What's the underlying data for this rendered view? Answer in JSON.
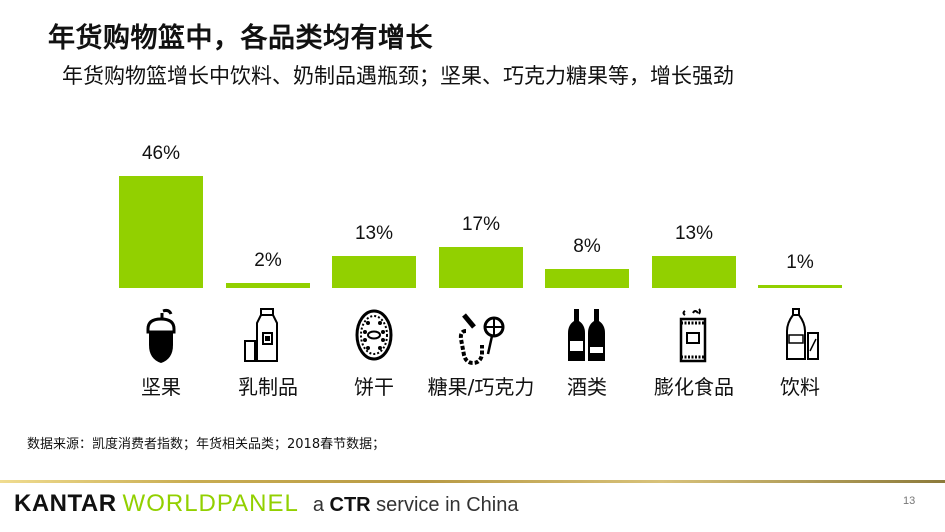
{
  "header": {
    "title": "年货购物篮中，各品类均有增长",
    "subtitle": "年货购物篮增长中饮料、奶制品遇瓶颈；坚果、巧克力糖果等，增长强劲"
  },
  "chart_data": {
    "type": "bar",
    "title": "年货购物篮中，各品类均有增长",
    "subtitle": "年货购物篮增长中饮料、奶制品遇瓶颈；坚果、巧克力糖果等，增长强劲",
    "categories": [
      "坚果",
      "乳制品",
      "饼干",
      "糖果/巧克力",
      "酒类",
      "膨化食品",
      "饮料"
    ],
    "values": [
      46,
      2,
      13,
      17,
      8,
      13,
      1
    ],
    "value_labels": [
      "46%",
      "2%",
      "13%",
      "17%",
      "8%",
      "13%",
      "1%"
    ],
    "unit": "%",
    "xlabel": "",
    "ylabel": "",
    "ylim": [
      0,
      50
    ],
    "grid": false,
    "legend": "none",
    "bar_color": "#92d000",
    "category_icons": [
      "acorn-icon",
      "milk-bottle-glass-icon",
      "biscuit-icon",
      "candy-lollipop-icon",
      "wine-bottles-icon",
      "snack-bag-icon",
      "soda-bottle-can-icon"
    ]
  },
  "source_note": "数据来源：凯度消费者指数；年货相关品类；2018春节数据；",
  "footer": {
    "brand_kantar": "KANTAR",
    "brand_worldpanel": "WORLDPANEL",
    "ctr_prefix": "a ",
    "ctr": "CTR",
    "ctr_suffix": " service in China",
    "page_number": "13",
    "brand_color": "#92d000"
  }
}
